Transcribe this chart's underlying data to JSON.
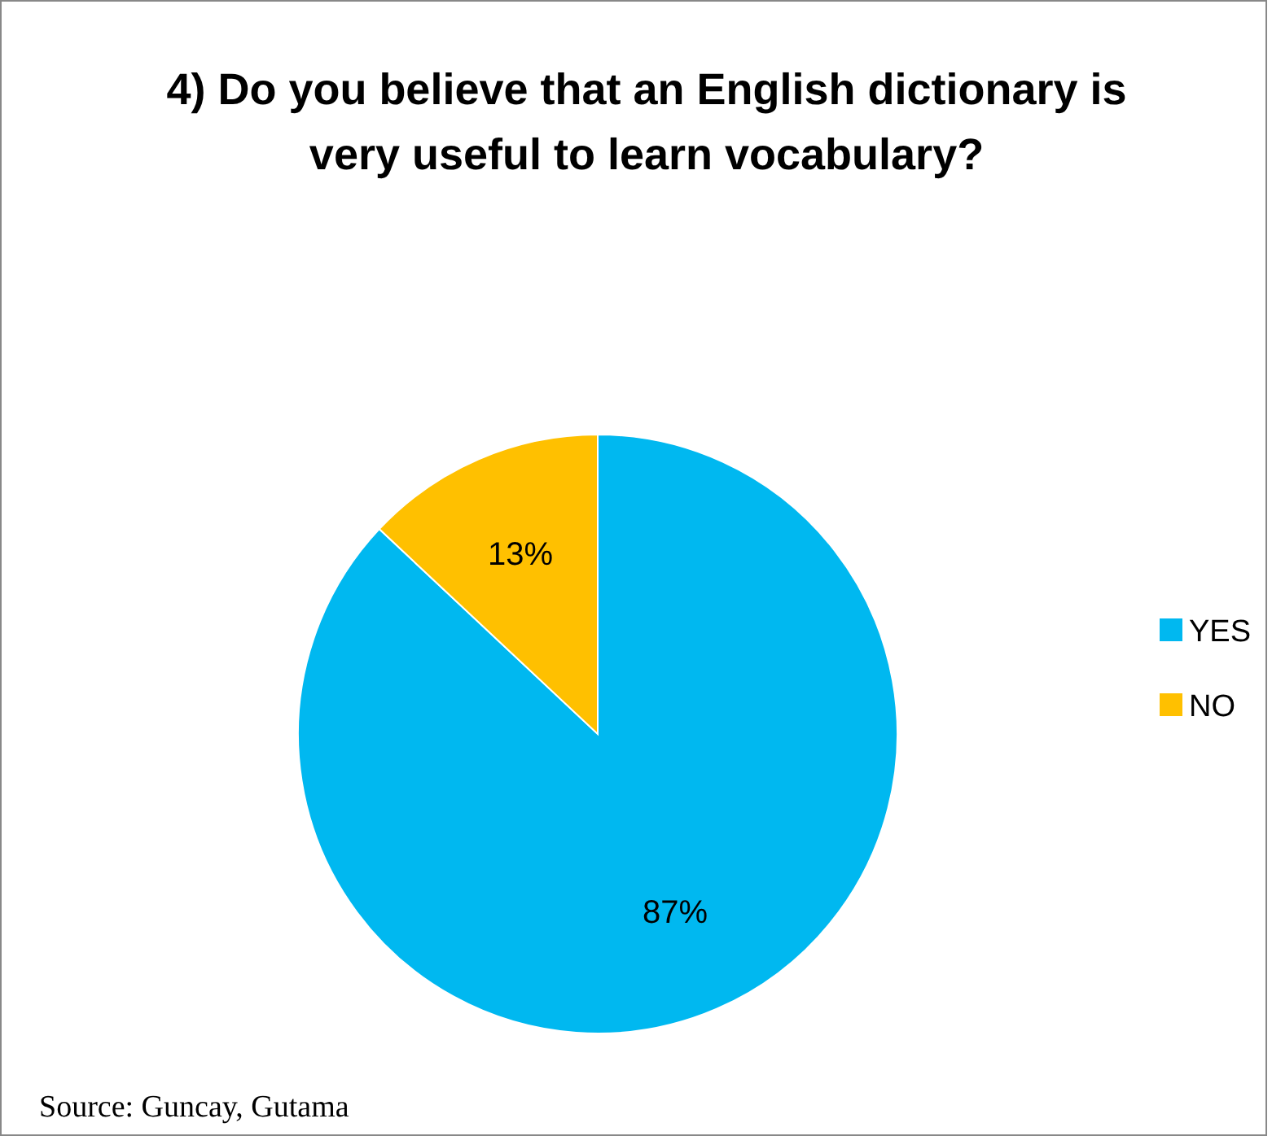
{
  "chart_data": {
    "type": "pie",
    "title": "4) Do you believe that an English dictionary is very useful to learn vocabulary?",
    "categories": [
      "YES",
      "NO"
    ],
    "values": [
      87,
      13
    ],
    "colors": [
      "#00b8f0",
      "#ffc000"
    ],
    "value_labels": [
      "87%",
      "13%"
    ],
    "legend": "right",
    "annotations": [
      "Source: Guncay, Gutama"
    ]
  }
}
